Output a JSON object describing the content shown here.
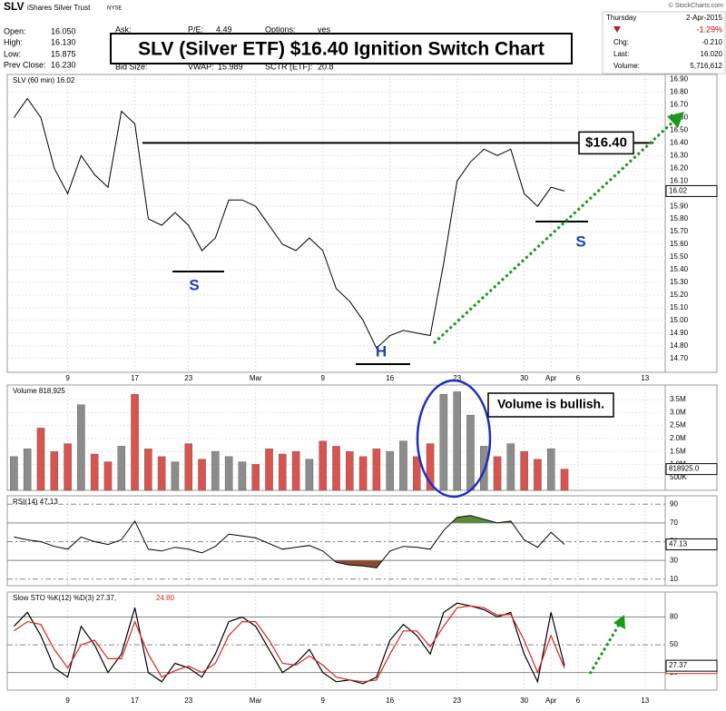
{
  "header": {
    "symbol": "SLV",
    "name": "iShares Silver Trust",
    "exchange": "NYSE",
    "source": "© StockCharts.com",
    "title": "SLV (Silver ETF) $16.40 Ignition Switch Chart",
    "quote_left": [
      {
        "label": "Open:",
        "value": "16.050"
      },
      {
        "label": "High:",
        "value": "16.130"
      },
      {
        "label": "Low:",
        "value": "15.875"
      },
      {
        "label": "Prev Close:",
        "value": "16.230"
      }
    ],
    "quote_mid_top": [
      {
        "label": "Ask:"
      },
      {
        "label": "P/E:",
        "value": "4.49"
      },
      {
        "label": "Options:",
        "value": "yes"
      }
    ],
    "quote_mid_bottom": [
      {
        "label": "Bid Size:"
      },
      {
        "label": "VWAP:",
        "value": "15.989"
      },
      {
        "label": "SCTR (ETF):",
        "value": "20.8"
      }
    ],
    "day": "Thursday",
    "date": "2-Apr-2015",
    "change_pct": "-1.29%",
    "summary": [
      {
        "label": "Chg:",
        "value": "-0.210"
      },
      {
        "label": "Last:",
        "value": "16.020"
      },
      {
        "label": "Volume:",
        "value": "5,716,612"
      }
    ]
  },
  "chart_data": [
    {
      "type": "line",
      "title": "SLV (60 min) 16.02",
      "color": "#000000",
      "x": [
        -4,
        -3,
        -2,
        -1,
        0,
        1,
        2,
        3,
        4,
        5,
        6,
        7,
        8,
        9,
        10,
        11,
        12,
        13,
        14,
        15,
        16,
        17,
        18,
        19,
        20,
        21,
        22,
        23,
        24,
        25,
        26,
        27,
        28,
        29,
        30,
        31,
        32,
        33,
        34,
        35,
        36,
        37
      ],
      "values": [
        16.6,
        16.75,
        16.6,
        16.2,
        16.0,
        16.3,
        16.15,
        16.05,
        16.65,
        16.55,
        15.8,
        15.75,
        15.85,
        15.75,
        15.55,
        15.65,
        15.95,
        15.95,
        15.9,
        15.75,
        15.6,
        15.55,
        15.65,
        15.55,
        15.25,
        15.15,
        15.0,
        14.78,
        14.88,
        14.92,
        14.9,
        14.88,
        15.45,
        16.1,
        16.25,
        16.35,
        16.3,
        16.35,
        16.0,
        15.9,
        16.05,
        16.02
      ],
      "xlim": [
        -4.5,
        44.5
      ],
      "xticks": [
        {
          "value": 0,
          "label": "9"
        },
        {
          "value": 5,
          "label": "17"
        },
        {
          "value": 9,
          "label": "23"
        },
        {
          "value": 14,
          "label": "Mar"
        },
        {
          "value": 19,
          "label": "9"
        },
        {
          "value": 24,
          "label": "16"
        },
        {
          "value": 29,
          "label": "23"
        },
        {
          "value": 34,
          "label": "30"
        },
        {
          "value": 36,
          "label": "Apr"
        },
        {
          "value": 38,
          "label": "6"
        },
        {
          "value": 43,
          "label": "13"
        }
      ],
      "ylim": [
        14.59,
        16.94
      ],
      "yticks": [
        {
          "value": 16.9,
          "label": "16.90"
        },
        {
          "value": 16.8,
          "label": "16.80"
        },
        {
          "value": 16.7,
          "label": "16.70"
        },
        {
          "value": 16.6,
          "label": "16.60"
        },
        {
          "value": 16.5,
          "label": "16.50"
        },
        {
          "value": 16.4,
          "label": "16.40"
        },
        {
          "value": 16.3,
          "label": "16.30"
        },
        {
          "value": 16.2,
          "label": "16.20"
        },
        {
          "value": 16.1,
          "label": "16.10"
        },
        {
          "value": 16.0,
          "label": "16.00"
        },
        {
          "value": 15.9,
          "label": "15.90"
        },
        {
          "value": 15.8,
          "label": "15.80"
        },
        {
          "value": 15.7,
          "label": "15.70"
        },
        {
          "value": 15.6,
          "label": "15.60"
        },
        {
          "value": 15.5,
          "label": "15.50"
        },
        {
          "value": 15.4,
          "label": "15.40"
        },
        {
          "value": 15.3,
          "label": "15.30"
        },
        {
          "value": 15.2,
          "label": "15.20"
        },
        {
          "value": 15.1,
          "label": "15.10"
        },
        {
          "value": 15.0,
          "label": "15.00"
        },
        {
          "value": 14.9,
          "label": "14.90"
        },
        {
          "value": 14.8,
          "label": "14.80"
        },
        {
          "value": 14.7,
          "label": "14.70"
        }
      ],
      "resistance": 16.4,
      "annotations": [
        "$16.40",
        "S",
        "H",
        "S"
      ],
      "grid": true
    },
    {
      "type": "bar",
      "title": "Volume 818,925",
      "up_color": "#8c8c8c",
      "down_color": "#d9534f",
      "last_label": "818925.0",
      "values": [
        1300000,
        1600000,
        2400000,
        1500000,
        1800000,
        3300000,
        1400000,
        1100000,
        1700000,
        3700000,
        1600000,
        1300000,
        1100000,
        1800000,
        1200000,
        1500000,
        1300000,
        1100000,
        1000000,
        1600000,
        1400000,
        1500000,
        1200000,
        1900000,
        1700000,
        1500000,
        1300000,
        1600000,
        1500000,
        1900000,
        1300000,
        1800000,
        3700000,
        3800000,
        2900000,
        1700000,
        1300000,
        1800000,
        1500000,
        1200000,
        1600000,
        818925
      ],
      "ylim": [
        0,
        4060000
      ],
      "yticks": [
        {
          "value": 3500000,
          "label": "3.5M"
        },
        {
          "value": 3000000,
          "label": "3.0M"
        },
        {
          "value": 2500000,
          "label": "2.5M"
        },
        {
          "value": 2000000,
          "label": "2.0M"
        },
        {
          "value": 1500000,
          "label": "1.5M"
        },
        {
          "value": 1000000,
          "label": "1.0M"
        },
        {
          "value": 500000,
          "label": "500K"
        }
      ],
      "annotations": [
        "Volume is bullish."
      ]
    },
    {
      "type": "line",
      "title": "RSI(14) 47.13",
      "color": "#000000",
      "over_color": "#5a8a3a",
      "under_color": "#8b4a2c",
      "values": [
        55,
        52,
        50,
        45,
        42,
        55,
        50,
        47,
        52,
        72,
        42,
        40,
        44,
        42,
        38,
        45,
        58,
        56,
        54,
        48,
        42,
        44,
        46,
        40,
        28,
        25,
        24,
        22,
        40,
        45,
        44,
        42,
        62,
        76,
        78,
        74,
        70,
        72,
        52,
        44,
        60,
        47.13
      ],
      "ylim": [
        3,
        99
      ],
      "yticks": [
        90,
        70,
        50,
        30,
        10
      ],
      "bands": [
        30,
        70
      ]
    },
    {
      "type": "line",
      "title": "Slow STO %K(12) %D(3) 27.37,",
      "series": [
        {
          "name": "%K(12)",
          "color": "#000000",
          "values": [
            70,
            85,
            60,
            25,
            15,
            70,
            50,
            20,
            40,
            90,
            20,
            10,
            30,
            25,
            15,
            40,
            75,
            80,
            70,
            45,
            20,
            30,
            45,
            20,
            10,
            12,
            8,
            15,
            55,
            72,
            60,
            40,
            85,
            95,
            92,
            88,
            80,
            85,
            40,
            10,
            85,
            27.37
          ]
        },
        {
          "name": "%D(3)",
          "color": "#e02020",
          "last_label": "24.80",
          "values": [
            65,
            75,
            72,
            45,
            25,
            50,
            55,
            35,
            35,
            75,
            40,
            15,
            22,
            27,
            20,
            30,
            60,
            75,
            75,
            55,
            30,
            28,
            38,
            28,
            15,
            12,
            10,
            12,
            40,
            65,
            65,
            48,
            70,
            90,
            92,
            90,
            82,
            83,
            55,
            20,
            60,
            24.8
          ]
        }
      ],
      "ylim": [
        1,
        107
      ],
      "yticks": [
        80,
        50,
        20
      ],
      "bands": [
        20,
        80
      ]
    }
  ]
}
